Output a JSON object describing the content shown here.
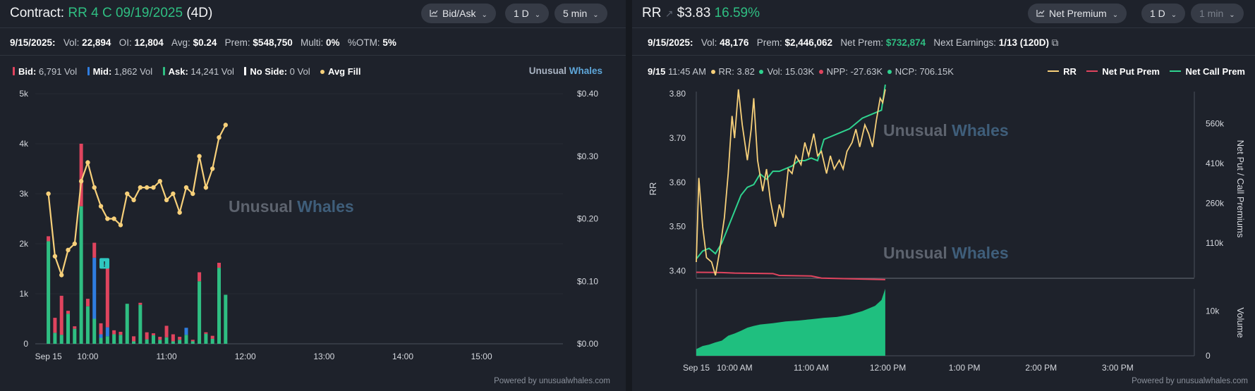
{
  "colors": {
    "bid": "#e0445e",
    "mid": "#2f7de0",
    "ask": "#2fbe82",
    "no_side": "#ffffff",
    "avg_fill": "#f7d07a",
    "rr_line": "#f7d07a",
    "net_put": "#e0445e",
    "net_call": "#2fd38f",
    "volume_area": "#1fbf7f",
    "watermark_a": "#5d636e",
    "watermark_b": "#3f5e7a"
  },
  "left": {
    "title_prefix": "Contract:",
    "title_contract": "RR 4 C 09/19/2025",
    "title_dte": "(4D)",
    "controls": {
      "chart_type": "Bid/Ask",
      "chart_type_icon": "line-chart-icon",
      "period": "1 D",
      "interval": "5 min"
    },
    "stats": {
      "date": "9/15/2025:",
      "vol_label": "Vol:",
      "vol": "22,894",
      "oi_label": "OI:",
      "oi": "12,804",
      "avg_label": "Avg:",
      "avg": "$0.24",
      "prem_label": "Prem:",
      "prem": "$548,750",
      "multi_label": "Multi:",
      "multi": "0%",
      "otm_label": "%OTM:",
      "otm": "5%"
    },
    "legend": {
      "bid_label": "Bid:",
      "bid_val": "6,791 Vol",
      "mid_label": "Mid:",
      "mid_val": "1,862 Vol",
      "ask_label": "Ask:",
      "ask_val": "14,241 Vol",
      "noside_label": "No Side:",
      "noside_val": "0 Vol",
      "avg_label": "Avg Fill"
    },
    "brand": {
      "a": "Unusual",
      "b": "Whales"
    },
    "watermark": {
      "a": "Unusual",
      "b": "Whales"
    },
    "powered": "Powered by unusualwhales.com",
    "marker_label": "!"
  },
  "right": {
    "title_ticker": "RR",
    "title_price": "$3.83",
    "title_change": "16.59%",
    "controls": {
      "chart_type": "Net Premium",
      "chart_type_icon": "line-chart-icon",
      "period": "1 D",
      "interval": "1 min"
    },
    "stats": {
      "date": "9/15/2025:",
      "vol_label": "Vol:",
      "vol": "48,176",
      "prem_label": "Prem:",
      "prem": "$2,446,062",
      "netprem_label": "Net Prem:",
      "netprem": "$732,874",
      "earn_label": "Next Earnings:",
      "earn": "1/13 (120D)"
    },
    "tooltip": {
      "date": "9/15",
      "time": "11:45 AM",
      "rr_label": "RR:",
      "rr": "3.82",
      "vol_label": "Vol:",
      "vol": "15.03K",
      "npp_label": "NPP:",
      "npp": "-27.63K",
      "ncp_label": "NCP:",
      "ncp": "706.15K"
    },
    "legend": {
      "rr": "RR",
      "put": "Net Put Prem",
      "call": "Net Call Prem"
    },
    "watermark": {
      "a": "Unusual",
      "b": "Whales"
    },
    "powered": "Powered by unusualwhales.com"
  },
  "chart_data": [
    {
      "type": "bar",
      "subtype": "stacked bar + line (dual axis)",
      "x_tick_labels": [
        "Sep 15",
        "10:00",
        "11:00",
        "12:00",
        "13:00",
        "14:00",
        "15:00"
      ],
      "x_ticks_minutes": [
        0,
        30,
        90,
        150,
        210,
        270,
        330
      ],
      "x_range_minutes": [
        -10,
        392
      ],
      "y_left_ticks": [
        "0",
        "1k",
        "2k",
        "3k",
        "4k",
        "5k"
      ],
      "y_left_range": [
        0,
        5000
      ],
      "y_right_ticks": [
        "$0.00",
        "$0.10",
        "$0.20",
        "$0.30",
        "$0.40"
      ],
      "y_right_range": [
        0,
        0.4
      ],
      "series_names": [
        "Bid",
        "Mid",
        "Ask",
        "No Side",
        "Avg Fill"
      ],
      "bars": [
        {
          "t": 0,
          "ask": 2050,
          "mid": 0,
          "bid": 100
        },
        {
          "t": 5,
          "ask": 220,
          "mid": 0,
          "bid": 300
        },
        {
          "t": 10,
          "ask": 180,
          "mid": 0,
          "bid": 780
        },
        {
          "t": 15,
          "ask": 600,
          "mid": 0,
          "bid": 60
        },
        {
          "t": 20,
          "ask": 300,
          "mid": 0,
          "bid": 50
        },
        {
          "t": 25,
          "ask": 2750,
          "mid": 0,
          "bid": 1250
        },
        {
          "t": 30,
          "ask": 750,
          "mid": 0,
          "bid": 150
        },
        {
          "t": 35,
          "ask": 500,
          "mid": 1220,
          "bid": 300
        },
        {
          "t": 40,
          "ask": 120,
          "mid": 70,
          "bid": 220
        },
        {
          "t": 45,
          "ask": 150,
          "mid": 180,
          "bid": 1300
        },
        {
          "t": 50,
          "ask": 190,
          "mid": 0,
          "bid": 80
        },
        {
          "t": 55,
          "ask": 180,
          "mid": 0,
          "bid": 60
        },
        {
          "t": 60,
          "ask": 800,
          "mid": 0,
          "bid": 0
        },
        {
          "t": 65,
          "ask": 50,
          "mid": 0,
          "bid": 100
        },
        {
          "t": 70,
          "ask": 780,
          "mid": 0,
          "bid": 40
        },
        {
          "t": 75,
          "ask": 90,
          "mid": 0,
          "bid": 140
        },
        {
          "t": 80,
          "ask": 170,
          "mid": 0,
          "bid": 40
        },
        {
          "t": 85,
          "ask": 80,
          "mid": 0,
          "bid": 60
        },
        {
          "t": 90,
          "ask": 130,
          "mid": 0,
          "bid": 230
        },
        {
          "t": 95,
          "ask": 50,
          "mid": 0,
          "bid": 140
        },
        {
          "t": 100,
          "ask": 80,
          "mid": 0,
          "bid": 60
        },
        {
          "t": 105,
          "ask": 180,
          "mid": 140,
          "bid": 0
        },
        {
          "t": 110,
          "ask": 50,
          "mid": 0,
          "bid": 30
        },
        {
          "t": 115,
          "ask": 1250,
          "mid": 0,
          "bid": 180
        },
        {
          "t": 120,
          "ask": 200,
          "mid": 0,
          "bid": 30
        },
        {
          "t": 125,
          "ask": 100,
          "mid": 0,
          "bid": 60
        },
        {
          "t": 130,
          "ask": 1520,
          "mid": 0,
          "bid": 100
        },
        {
          "t": 135,
          "ask": 980,
          "mid": 0,
          "bid": 0
        }
      ],
      "avg_fill": [
        {
          "t": 0,
          "v": 0.24
        },
        {
          "t": 5,
          "v": 0.14
        },
        {
          "t": 10,
          "v": 0.11
        },
        {
          "t": 15,
          "v": 0.15
        },
        {
          "t": 20,
          "v": 0.16
        },
        {
          "t": 25,
          "v": 0.26
        },
        {
          "t": 30,
          "v": 0.29
        },
        {
          "t": 35,
          "v": 0.25
        },
        {
          "t": 40,
          "v": 0.22
        },
        {
          "t": 45,
          "v": 0.2
        },
        {
          "t": 50,
          "v": 0.2
        },
        {
          "t": 55,
          "v": 0.19
        },
        {
          "t": 60,
          "v": 0.24
        },
        {
          "t": 65,
          "v": 0.23
        },
        {
          "t": 70,
          "v": 0.25
        },
        {
          "t": 75,
          "v": 0.25
        },
        {
          "t": 80,
          "v": 0.25
        },
        {
          "t": 85,
          "v": 0.26
        },
        {
          "t": 90,
          "v": 0.23
        },
        {
          "t": 95,
          "v": 0.24
        },
        {
          "t": 100,
          "v": 0.21
        },
        {
          "t": 105,
          "v": 0.25
        },
        {
          "t": 110,
          "v": 0.24
        },
        {
          "t": 115,
          "v": 0.3
        },
        {
          "t": 120,
          "v": 0.25
        },
        {
          "t": 125,
          "v": 0.28
        },
        {
          "t": 130,
          "v": 0.33
        },
        {
          "t": 135,
          "v": 0.35
        }
      ],
      "marker": {
        "t": 40,
        "v": 1600
      }
    },
    {
      "type": "line",
      "subtype": "RR price + net put/call premium (dual axis) with volume area",
      "x_tick_labels": [
        "Sep 15",
        "10:00 AM",
        "11:00 AM",
        "12:00 PM",
        "1:00 PM",
        "2:00 PM",
        "3:00 PM"
      ],
      "x_ticks_minutes": [
        0,
        30,
        90,
        150,
        210,
        270,
        330
      ],
      "x_range_minutes": [
        0,
        390
      ],
      "y_left_label": "RR",
      "y_left_ticks": [
        "3.40",
        "3.50",
        "3.60",
        "3.70",
        "3.80"
      ],
      "y_left_range": [
        3.385,
        3.805
      ],
      "y_right_label": "Net Put / Call Premiums",
      "y_right_ticks": [
        "110k",
        "260k",
        "410k",
        "560k"
      ],
      "y_right_range": [
        -20000,
        680000
      ],
      "volume_label": "Volume",
      "volume_ticks": [
        "0",
        "10k"
      ],
      "volume_range": [
        0,
        15000
      ],
      "rr": [
        {
          "t": 0,
          "v": 3.42
        },
        {
          "t": 2,
          "v": 3.61
        },
        {
          "t": 5,
          "v": 3.5
        },
        {
          "t": 8,
          "v": 3.43
        },
        {
          "t": 12,
          "v": 3.42
        },
        {
          "t": 15,
          "v": 3.39
        },
        {
          "t": 18,
          "v": 3.44
        },
        {
          "t": 22,
          "v": 3.52
        },
        {
          "t": 25,
          "v": 3.62
        },
        {
          "t": 28,
          "v": 3.75
        },
        {
          "t": 30,
          "v": 3.7
        },
        {
          "t": 33,
          "v": 3.81
        },
        {
          "t": 36,
          "v": 3.73
        },
        {
          "t": 40,
          "v": 3.65
        },
        {
          "t": 43,
          "v": 3.72
        },
        {
          "t": 45,
          "v": 3.79
        },
        {
          "t": 48,
          "v": 3.65
        },
        {
          "t": 52,
          "v": 3.58
        },
        {
          "t": 55,
          "v": 3.63
        },
        {
          "t": 58,
          "v": 3.56
        },
        {
          "t": 62,
          "v": 3.5
        },
        {
          "t": 65,
          "v": 3.55
        },
        {
          "t": 68,
          "v": 3.52
        },
        {
          "t": 72,
          "v": 3.63
        },
        {
          "t": 75,
          "v": 3.62
        },
        {
          "t": 78,
          "v": 3.66
        },
        {
          "t": 82,
          "v": 3.64
        },
        {
          "t": 85,
          "v": 3.69
        },
        {
          "t": 88,
          "v": 3.66
        },
        {
          "t": 92,
          "v": 3.71
        },
        {
          "t": 95,
          "v": 3.66
        },
        {
          "t": 98,
          "v": 3.67
        },
        {
          "t": 102,
          "v": 3.62
        },
        {
          "t": 105,
          "v": 3.66
        },
        {
          "t": 108,
          "v": 3.63
        },
        {
          "t": 112,
          "v": 3.65
        },
        {
          "t": 115,
          "v": 3.63
        },
        {
          "t": 118,
          "v": 3.67
        },
        {
          "t": 122,
          "v": 3.69
        },
        {
          "t": 125,
          "v": 3.72
        },
        {
          "t": 128,
          "v": 3.68
        },
        {
          "t": 132,
          "v": 3.73
        },
        {
          "t": 135,
          "v": 3.71
        },
        {
          "t": 138,
          "v": 3.68
        },
        {
          "t": 141,
          "v": 3.74
        },
        {
          "t": 144,
          "v": 3.79
        },
        {
          "t": 146,
          "v": 3.78
        },
        {
          "t": 148,
          "v": 3.81
        }
      ],
      "net_call": [
        {
          "t": 0,
          "v": 50000
        },
        {
          "t": 5,
          "v": 80000
        },
        {
          "t": 10,
          "v": 90000
        },
        {
          "t": 15,
          "v": 70000
        },
        {
          "t": 20,
          "v": 110000
        },
        {
          "t": 25,
          "v": 170000
        },
        {
          "t": 30,
          "v": 230000
        },
        {
          "t": 35,
          "v": 290000
        },
        {
          "t": 40,
          "v": 320000
        },
        {
          "t": 45,
          "v": 330000
        },
        {
          "t": 50,
          "v": 370000
        },
        {
          "t": 55,
          "v": 350000
        },
        {
          "t": 60,
          "v": 380000
        },
        {
          "t": 65,
          "v": 380000
        },
        {
          "t": 70,
          "v": 390000
        },
        {
          "t": 75,
          "v": 400000
        },
        {
          "t": 80,
          "v": 420000
        },
        {
          "t": 85,
          "v": 420000
        },
        {
          "t": 90,
          "v": 430000
        },
        {
          "t": 95,
          "v": 420000
        },
        {
          "t": 100,
          "v": 500000
        },
        {
          "t": 105,
          "v": 510000
        },
        {
          "t": 110,
          "v": 520000
        },
        {
          "t": 115,
          "v": 530000
        },
        {
          "t": 120,
          "v": 540000
        },
        {
          "t": 125,
          "v": 560000
        },
        {
          "t": 130,
          "v": 580000
        },
        {
          "t": 135,
          "v": 590000
        },
        {
          "t": 140,
          "v": 600000
        },
        {
          "t": 145,
          "v": 610000
        },
        {
          "t": 148,
          "v": 706150
        }
      ],
      "net_put": [
        {
          "t": 0,
          "v": 0
        },
        {
          "t": 20,
          "v": -1000
        },
        {
          "t": 30,
          "v": -3000
        },
        {
          "t": 60,
          "v": -5000
        },
        {
          "t": 65,
          "v": -12000
        },
        {
          "t": 90,
          "v": -14000
        },
        {
          "t": 98,
          "v": -22000
        },
        {
          "t": 148,
          "v": -27630
        }
      ],
      "volume": [
        {
          "t": 0,
          "v": 1500
        },
        {
          "t": 5,
          "v": 2200
        },
        {
          "t": 10,
          "v": 2500
        },
        {
          "t": 15,
          "v": 3000
        },
        {
          "t": 20,
          "v": 3400
        },
        {
          "t": 25,
          "v": 4500
        },
        {
          "t": 30,
          "v": 5000
        },
        {
          "t": 35,
          "v": 5600
        },
        {
          "t": 40,
          "v": 6300
        },
        {
          "t": 45,
          "v": 6700
        },
        {
          "t": 50,
          "v": 7000
        },
        {
          "t": 60,
          "v": 7300
        },
        {
          "t": 70,
          "v": 7700
        },
        {
          "t": 80,
          "v": 7900
        },
        {
          "t": 90,
          "v": 8200
        },
        {
          "t": 100,
          "v": 8500
        },
        {
          "t": 110,
          "v": 8700
        },
        {
          "t": 120,
          "v": 9200
        },
        {
          "t": 130,
          "v": 10000
        },
        {
          "t": 140,
          "v": 11200
        },
        {
          "t": 145,
          "v": 12500
        },
        {
          "t": 148,
          "v": 15030
        }
      ]
    }
  ]
}
